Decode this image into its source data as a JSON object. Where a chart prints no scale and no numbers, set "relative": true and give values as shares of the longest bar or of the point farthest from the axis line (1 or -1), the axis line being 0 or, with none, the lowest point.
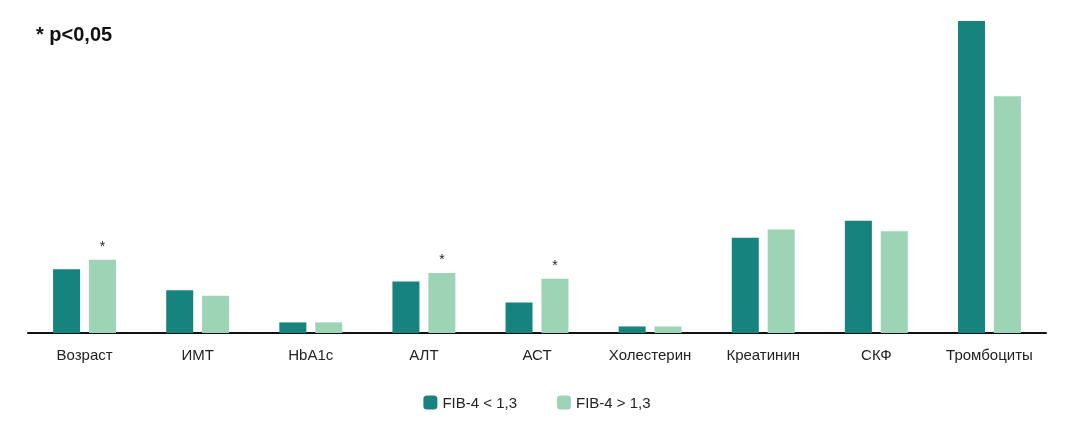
{
  "chart_data": {
    "type": "bar",
    "relative": true,
    "categories": [
      "Возраст",
      "ИМТ",
      "HbA1c",
      "АЛТ",
      "АСТ",
      "Холестерин",
      "Креатинин",
      "СКФ",
      "Тромбоциты"
    ],
    "series": [
      {
        "name": "FIB-4 < 1,3",
        "color": "#17837e",
        "values": [
          0.204,
          0.137,
          0.034,
          0.165,
          0.098,
          0.021,
          0.305,
          0.36,
          1
        ]
      },
      {
        "name": "FIB-4 > 1,3",
        "color": "#9dd4b6",
        "values": [
          0.235,
          0.119,
          0.034,
          0.192,
          0.174,
          0.021,
          0.332,
          0.326,
          0.759
        ]
      }
    ],
    "annotations": [
      "* p<0,05",
      {
        "text": "*",
        "x": "Возраст",
        "y": 0.235
      },
      {
        "text": "*",
        "x": "АЛТ",
        "y": 0.192
      },
      {
        "text": "*",
        "x": "АСТ",
        "y": 0.174
      }
    ],
    "legend": "bottom",
    "grid": false
  }
}
